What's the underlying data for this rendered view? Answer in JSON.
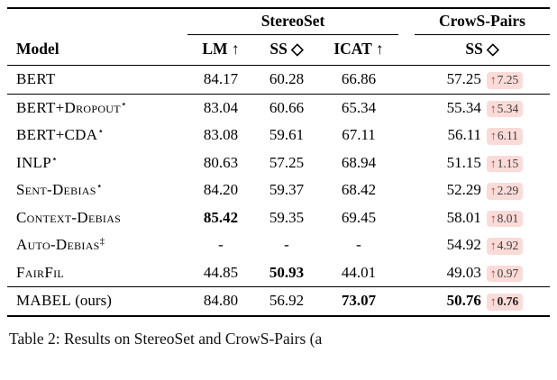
{
  "table": {
    "arrow": "↑",
    "groups": [
      {
        "label": "StereoSet"
      },
      {
        "label": "CrowS-Pairs"
      }
    ],
    "headers": {
      "model": "Model",
      "lm": "LM ↑",
      "ss": "SS ◇",
      "icat": "ICAT ↑",
      "cp_ss": "SS ◇"
    },
    "rows": [
      {
        "model": "BERT",
        "sup": "",
        "note": "",
        "lm": "84.17",
        "ss": "60.28",
        "icat": "66.86",
        "cp": "57.25",
        "delta": "7.25",
        "bold": [],
        "sep": true
      },
      {
        "model": "BERT+Dropout",
        "sup": "⋆",
        "note": "",
        "lm": "83.04",
        "ss": "60.66",
        "icat": "65.34",
        "cp": "55.34",
        "delta": "5.34",
        "bold": [],
        "sep": false
      },
      {
        "model": "BERT+CDA",
        "sup": "⋆",
        "note": "",
        "lm": "83.08",
        "ss": "59.61",
        "icat": "67.11",
        "cp": "56.11",
        "delta": "6.11",
        "bold": [],
        "sep": false
      },
      {
        "model": "INLP",
        "sup": "⋆",
        "note": "",
        "lm": "80.63",
        "ss": "57.25",
        "icat": "68.94",
        "cp": "51.15",
        "delta": "1.15",
        "bold": [],
        "sep": false
      },
      {
        "model": "Sent-Debias",
        "sup": "⋆",
        "note": "",
        "lm": "84.20",
        "ss": "59.37",
        "icat": "68.42",
        "cp": "52.29",
        "delta": "2.29",
        "bold": [],
        "sep": false
      },
      {
        "model": "Context-Debias",
        "sup": "",
        "note": "",
        "lm": "85.42",
        "ss": "59.35",
        "icat": "69.45",
        "cp": "58.01",
        "delta": "8.01",
        "bold": [
          "lm"
        ],
        "sep": false
      },
      {
        "model": "Auto-Debias",
        "sup": "‡",
        "note": "",
        "lm": "-",
        "ss": "-",
        "icat": "-",
        "cp": "54.92",
        "delta": "4.92",
        "bold": [],
        "sep": false
      },
      {
        "model": "FairFil",
        "sup": "",
        "note": "",
        "lm": "44.85",
        "ss": "50.93",
        "icat": "44.01",
        "cp": "49.03",
        "delta": "0.97",
        "bold": [
          "ss"
        ],
        "sep": true
      },
      {
        "model": "MABEL",
        "sup": "",
        "note": "(ours)",
        "lm": "84.80",
        "ss": "56.92",
        "icat": "73.07",
        "cp": "50.76",
        "delta": "0.76",
        "bold": [
          "icat",
          "cp",
          "delta"
        ],
        "sep": false
      }
    ]
  },
  "caption": "Table 2: Results on StereoSet and CrowS-Pairs (a"
}
